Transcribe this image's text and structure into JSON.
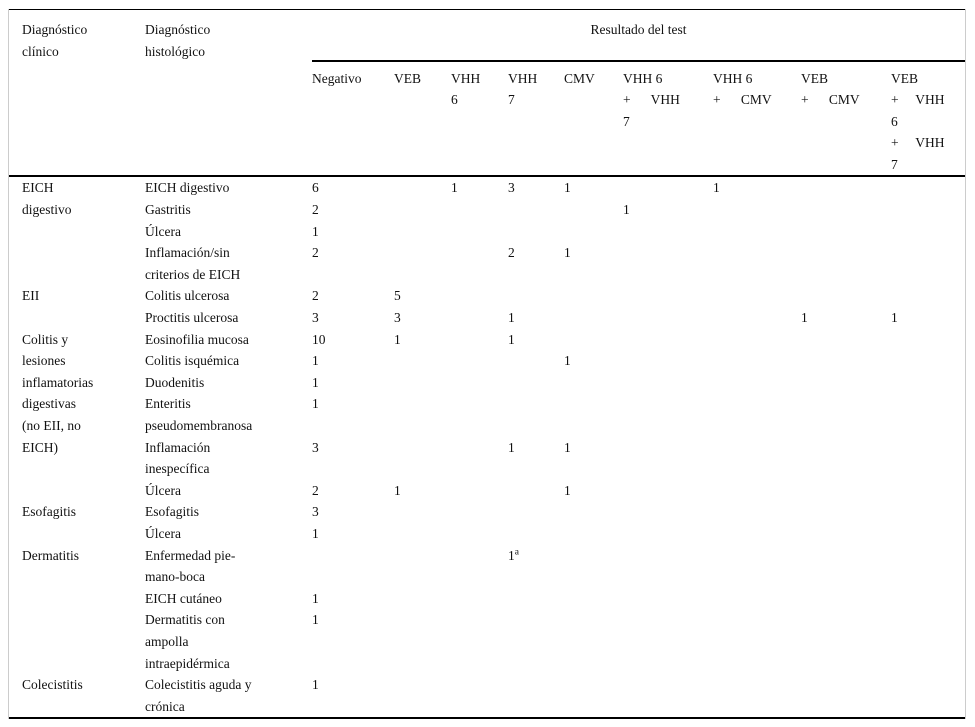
{
  "table": {
    "header": {
      "col_clinical": [
        "Diagnóstico",
        "clínico"
      ],
      "col_histological": [
        "Diagnóstico",
        "histológico"
      ],
      "group": "Resultado del test",
      "result_columns": [
        {
          "id": "negativo",
          "lines": [
            "Negativo"
          ]
        },
        {
          "id": "veb",
          "lines": [
            "VEB"
          ]
        },
        {
          "id": "vhh6",
          "lines": [
            "VHH",
            "6"
          ]
        },
        {
          "id": "vhh7",
          "lines": [
            "VHH",
            "7"
          ]
        },
        {
          "id": "cmv",
          "lines": [
            "CMV"
          ]
        },
        {
          "id": "vhh6-vhh7",
          "lines": [
            "VHH 6",
            "+      VHH",
            "7"
          ]
        },
        {
          "id": "vhh6-cmv",
          "lines": [
            "VHH 6",
            "+      CMV"
          ]
        },
        {
          "id": "veb-cmv",
          "lines": [
            "VEB",
            "+      CMV"
          ]
        },
        {
          "id": "veb-vhh6-vhh7",
          "lines": [
            "VEB",
            "+     VHH",
            "6",
            "+     VHH",
            "7"
          ]
        }
      ]
    },
    "groups": [
      {
        "clinical": [
          "EICH",
          "digestivo"
        ],
        "rows": [
          {
            "histological": [
              "EICH digestivo"
            ],
            "values": [
              "6",
              "",
              "1",
              "3",
              "1",
              "",
              "1",
              "",
              ""
            ]
          },
          {
            "histological": [
              "Gastritis"
            ],
            "values": [
              "2",
              "",
              "",
              "",
              "",
              "1",
              "",
              "",
              ""
            ]
          },
          {
            "histological": [
              "Úlcera"
            ],
            "values": [
              "1",
              "",
              "",
              "",
              "",
              "",
              "",
              "",
              ""
            ]
          },
          {
            "histological": [
              "Inflamación/sin",
              "criterios de EICH"
            ],
            "values": [
              "2",
              "",
              "",
              "2",
              "1",
              "",
              "",
              "",
              ""
            ]
          }
        ]
      },
      {
        "clinical": [
          "EII"
        ],
        "rows": [
          {
            "histological": [
              "Colitis ulcerosa"
            ],
            "values": [
              "2",
              "5",
              "",
              "",
              "",
              "",
              "",
              "",
              ""
            ]
          },
          {
            "histological": [
              "Proctitis ulcerosa"
            ],
            "values": [
              "3",
              "3",
              "",
              "1",
              "",
              "",
              "",
              "1",
              "1"
            ]
          }
        ]
      },
      {
        "clinical": [
          "Colitis y",
          "lesiones",
          "inflamatorias",
          "digestivas",
          "(no EII, no",
          "EICH)"
        ],
        "rows": [
          {
            "histological": [
              "Eosinofilia mucosa"
            ],
            "values": [
              "10",
              "1",
              "",
              "1",
              "",
              "",
              "",
              "",
              ""
            ]
          },
          {
            "histological": [
              "Colitis isquémica"
            ],
            "values": [
              "1",
              "",
              "",
              "",
              "1",
              "",
              "",
              "",
              ""
            ]
          },
          {
            "histological": [
              "Duodenitis"
            ],
            "values": [
              "1",
              "",
              "",
              "",
              "",
              "",
              "",
              "",
              ""
            ]
          },
          {
            "histological": [
              "Enteritis",
              "pseudomembranosa"
            ],
            "values": [
              "1",
              "",
              "",
              "",
              "",
              "",
              "",
              "",
              ""
            ]
          },
          {
            "histological": [
              "Inflamación",
              "inespecífica"
            ],
            "values": [
              "3",
              "",
              "",
              "1",
              "1",
              "",
              "",
              "",
              ""
            ]
          },
          {
            "histological": [
              "Úlcera"
            ],
            "values": [
              "2",
              "1",
              "",
              "",
              "1",
              "",
              "",
              "",
              ""
            ]
          }
        ]
      },
      {
        "clinical": [
          "Esofagitis"
        ],
        "rows": [
          {
            "histological": [
              "Esofagitis"
            ],
            "values": [
              "3",
              "",
              "",
              "",
              "",
              "",
              "",
              "",
              ""
            ]
          },
          {
            "histological": [
              "Úlcera"
            ],
            "values": [
              "1",
              "",
              "",
              "",
              "",
              "",
              "",
              "",
              ""
            ]
          }
        ]
      },
      {
        "clinical": [
          "Dermatitis"
        ],
        "rows": [
          {
            "histological": [
              "Enfermedad pie-",
              "mano-boca"
            ],
            "values": [
              "",
              "",
              "",
              "1^a",
              "",
              "",
              "",
              "",
              ""
            ]
          },
          {
            "histological": [
              "EICH cutáneo"
            ],
            "values": [
              "1",
              "",
              "",
              "",
              "",
              "",
              "",
              "",
              ""
            ]
          },
          {
            "histological": [
              "Dermatitis con",
              "ampolla",
              "intraepidérmica"
            ],
            "values": [
              "1",
              "",
              "",
              "",
              "",
              "",
              "",
              "",
              ""
            ]
          }
        ]
      },
      {
        "clinical": [
          "Colecistitis"
        ],
        "rows": [
          {
            "histological": [
              "Colecistitis aguda y",
              "crónica"
            ],
            "values": [
              "1",
              "",
              "",
              "",
              "",
              "",
              "",
              "",
              ""
            ]
          }
        ]
      }
    ]
  }
}
